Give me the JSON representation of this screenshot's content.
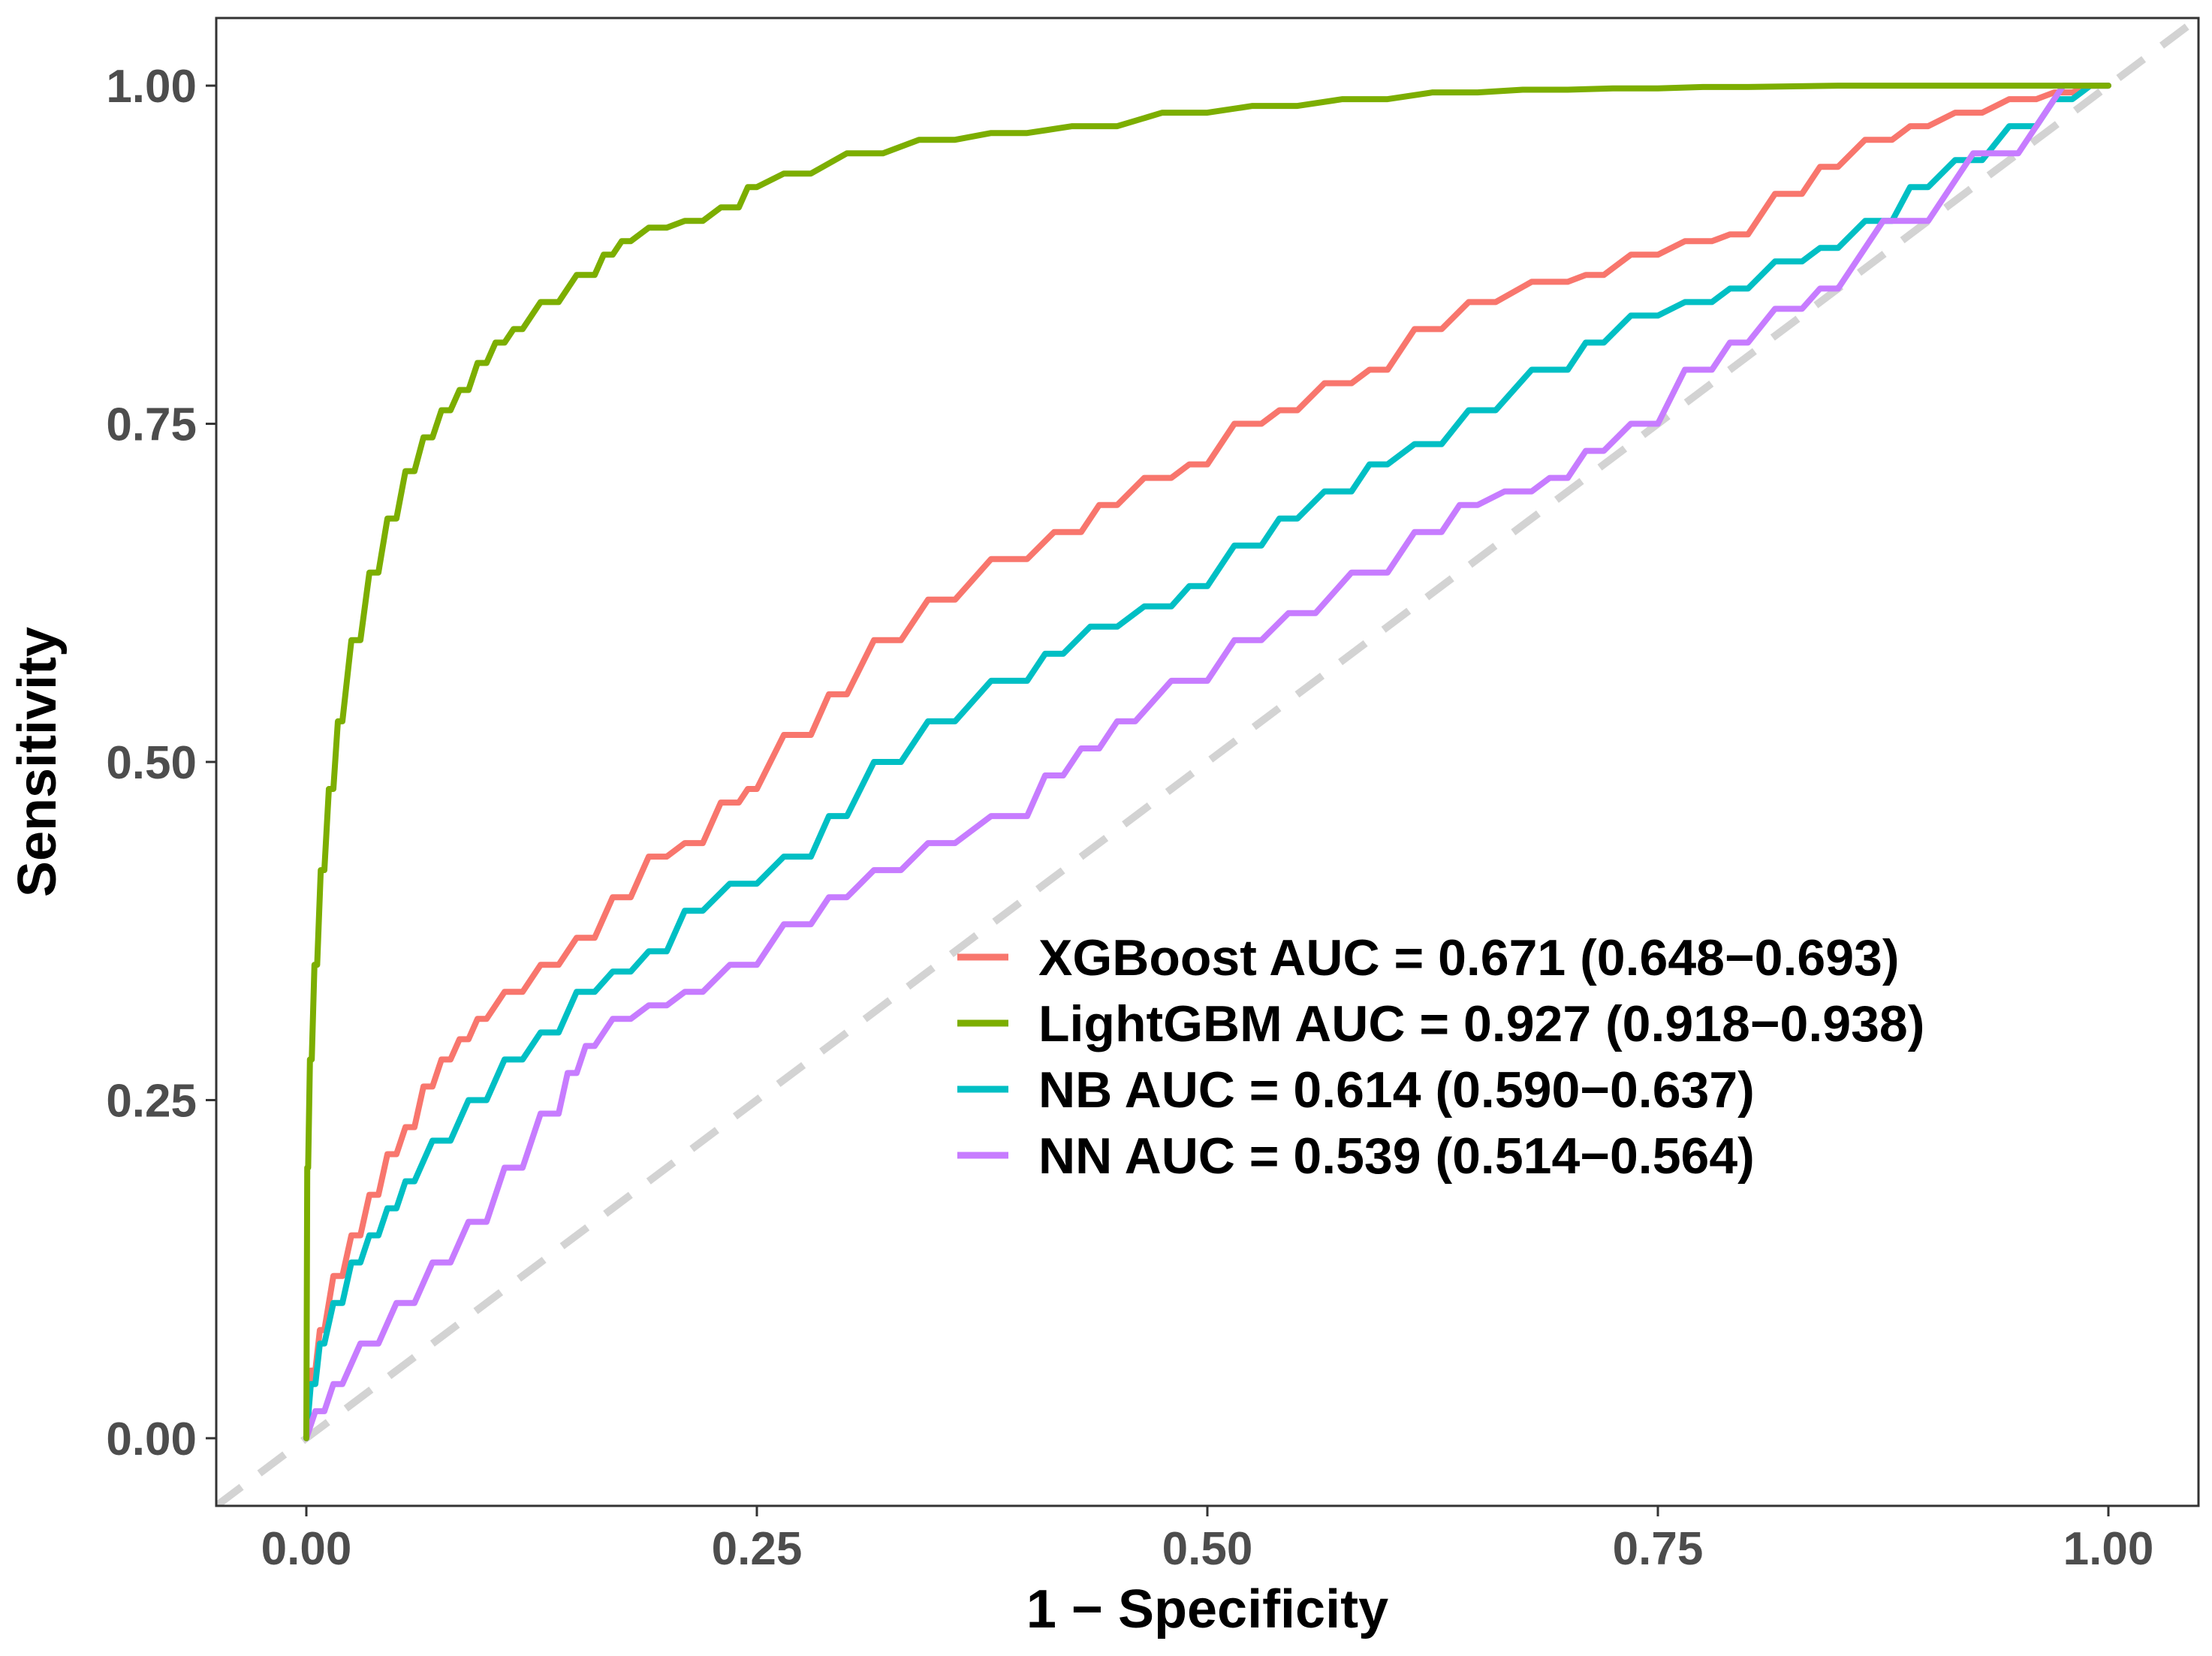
{
  "chart_data": {
    "type": "line",
    "title": "",
    "xlabel": "1 − Specificity",
    "ylabel": "Sensitivity",
    "xlim": [
      -0.05,
      1.05
    ],
    "ylim": [
      -0.05,
      1.05
    ],
    "xticks": [
      0,
      0.25,
      0.5,
      0.75,
      1
    ],
    "yticks": [
      0,
      0.25,
      0.5,
      0.75,
      1
    ],
    "xtick_labels": [
      "0.00",
      "0.25",
      "0.50",
      "0.75",
      "1.00"
    ],
    "ytick_labels": [
      "0.00",
      "0.25",
      "0.50",
      "0.75",
      "1.00"
    ],
    "grid": false,
    "legend_position": "bottom-right",
    "reference_line": {
      "type": "dashed-diagonal",
      "color": "#d3d3d3"
    },
    "series": [
      {
        "name": "XGBoost AUC = 0.671 (0.648−0.693)",
        "color": "#f8766d",
        "x": [
          0,
          0.005,
          0.01,
          0.02,
          0.03,
          0.04,
          0.05,
          0.06,
          0.07,
          0.08,
          0.09,
          0.1,
          0.12,
          0.14,
          0.16,
          0.18,
          0.2,
          0.22,
          0.24,
          0.25,
          0.28,
          0.3,
          0.33,
          0.36,
          0.4,
          0.43,
          0.45,
          0.48,
          0.5,
          0.53,
          0.55,
          0.58,
          0.6,
          0.63,
          0.66,
          0.7,
          0.72,
          0.75,
          0.78,
          0.8,
          0.83,
          0.85,
          0.88,
          0.9,
          0.93,
          0.96,
          0.98,
          1.0
        ],
        "y": [
          0,
          0.05,
          0.08,
          0.12,
          0.15,
          0.18,
          0.21,
          0.23,
          0.26,
          0.28,
          0.295,
          0.31,
          0.33,
          0.35,
          0.37,
          0.4,
          0.43,
          0.44,
          0.47,
          0.48,
          0.52,
          0.55,
          0.59,
          0.62,
          0.65,
          0.67,
          0.69,
          0.71,
          0.72,
          0.75,
          0.76,
          0.78,
          0.79,
          0.82,
          0.84,
          0.855,
          0.86,
          0.875,
          0.885,
          0.89,
          0.92,
          0.94,
          0.96,
          0.97,
          0.98,
          0.99,
          0.995,
          1.0
        ]
      },
      {
        "name": "LightGBM AUC = 0.927 (0.918−0.938)",
        "color": "#7cae00",
        "x": [
          0,
          0.001,
          0.003,
          0.006,
          0.01,
          0.015,
          0.02,
          0.03,
          0.04,
          0.05,
          0.06,
          0.07,
          0.08,
          0.09,
          0.1,
          0.11,
          0.12,
          0.14,
          0.16,
          0.17,
          0.18,
          0.2,
          0.22,
          0.24,
          0.25,
          0.28,
          0.32,
          0.36,
          0.4,
          0.45,
          0.5,
          0.55,
          0.6,
          0.65,
          0.7,
          0.75,
          0.8,
          0.9,
          1.0
        ],
        "y": [
          0,
          0.2,
          0.28,
          0.35,
          0.42,
          0.48,
          0.53,
          0.59,
          0.64,
          0.68,
          0.715,
          0.74,
          0.76,
          0.775,
          0.795,
          0.81,
          0.82,
          0.84,
          0.86,
          0.875,
          0.885,
          0.895,
          0.9,
          0.91,
          0.925,
          0.935,
          0.95,
          0.96,
          0.965,
          0.97,
          0.98,
          0.985,
          0.99,
          0.995,
          0.997,
          0.998,
          0.999,
          1.0,
          1.0
        ]
      },
      {
        "name": "NB AUC = 0.614 (0.590−0.637)",
        "color": "#00bfc4",
        "x": [
          0,
          0.005,
          0.01,
          0.02,
          0.03,
          0.04,
          0.05,
          0.06,
          0.08,
          0.1,
          0.12,
          0.14,
          0.16,
          0.18,
          0.2,
          0.22,
          0.25,
          0.28,
          0.3,
          0.33,
          0.36,
          0.4,
          0.42,
          0.45,
          0.48,
          0.5,
          0.53,
          0.55,
          0.58,
          0.6,
          0.63,
          0.66,
          0.7,
          0.72,
          0.75,
          0.78,
          0.8,
          0.83,
          0.85,
          0.88,
          0.9,
          0.93,
          0.96,
          0.98,
          1.0
        ],
        "y": [
          0,
          0.04,
          0.07,
          0.1,
          0.13,
          0.15,
          0.17,
          0.19,
          0.22,
          0.25,
          0.28,
          0.3,
          0.33,
          0.345,
          0.36,
          0.39,
          0.41,
          0.43,
          0.46,
          0.5,
          0.53,
          0.56,
          0.58,
          0.6,
          0.615,
          0.63,
          0.66,
          0.68,
          0.7,
          0.72,
          0.735,
          0.76,
          0.79,
          0.81,
          0.83,
          0.84,
          0.85,
          0.87,
          0.88,
          0.9,
          0.925,
          0.945,
          0.97,
          0.99,
          1.0
        ]
      },
      {
        "name": "NN AUC = 0.539 (0.514−0.564)",
        "color": "#c77cff",
        "x": [
          0,
          0.01,
          0.02,
          0.04,
          0.06,
          0.08,
          0.1,
          0.12,
          0.14,
          0.15,
          0.16,
          0.18,
          0.2,
          0.22,
          0.25,
          0.28,
          0.3,
          0.33,
          0.36,
          0.4,
          0.42,
          0.44,
          0.46,
          0.5,
          0.53,
          0.56,
          0.6,
          0.63,
          0.65,
          0.68,
          0.7,
          0.72,
          0.75,
          0.78,
          0.8,
          0.83,
          0.85,
          0.9,
          0.95,
          1.0
        ],
        "y": [
          0,
          0.02,
          0.04,
          0.07,
          0.1,
          0.13,
          0.16,
          0.2,
          0.24,
          0.27,
          0.29,
          0.31,
          0.32,
          0.33,
          0.35,
          0.38,
          0.4,
          0.42,
          0.44,
          0.46,
          0.49,
          0.51,
          0.53,
          0.56,
          0.59,
          0.61,
          0.64,
          0.67,
          0.69,
          0.7,
          0.71,
          0.73,
          0.75,
          0.79,
          0.81,
          0.835,
          0.85,
          0.9,
          0.95,
          1.0
        ]
      }
    ]
  }
}
